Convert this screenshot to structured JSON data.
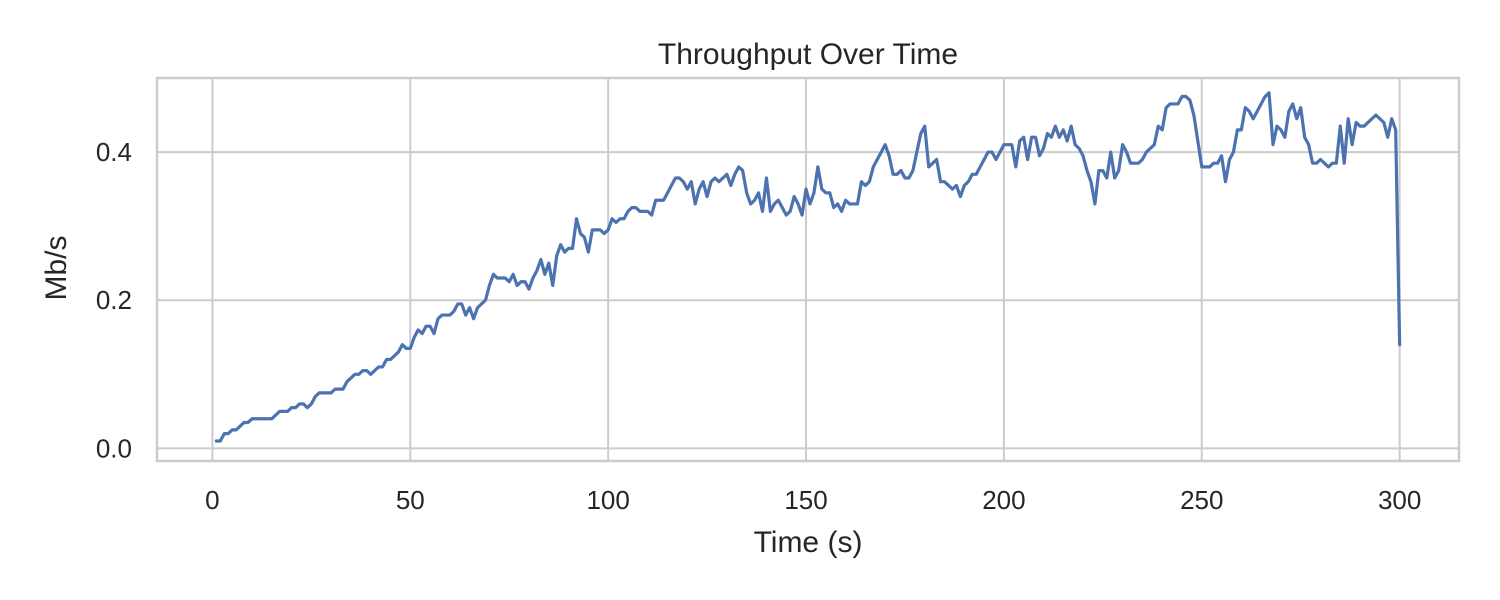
{
  "chart_data": {
    "type": "line",
    "title": "Throughput Over Time",
    "xlabel": "Time (s)",
    "ylabel": "Mb/s",
    "xlim": [
      -14,
      315
    ],
    "ylim": [
      -0.017,
      0.5
    ],
    "xticks": [
      0,
      50,
      100,
      150,
      200,
      250,
      300
    ],
    "xtick_labels": [
      "0",
      "50",
      "100",
      "150",
      "200",
      "250",
      "300"
    ],
    "yticks": [
      0.0,
      0.2,
      0.4
    ],
    "ytick_labels": [
      "0.0",
      "0.2",
      "0.4"
    ],
    "grid": true,
    "legend": "none",
    "line_color": "#4c72b0",
    "series": [
      {
        "points": [
          [
            1,
            0.01
          ],
          [
            2,
            0.01
          ],
          [
            3,
            0.02
          ],
          [
            4,
            0.02
          ],
          [
            5,
            0.025
          ],
          [
            6,
            0.025
          ],
          [
            7,
            0.03
          ],
          [
            8,
            0.035
          ],
          [
            9,
            0.035
          ],
          [
            10,
            0.04
          ],
          [
            11,
            0.04
          ],
          [
            12,
            0.04
          ],
          [
            13,
            0.04
          ],
          [
            14,
            0.04
          ],
          [
            15,
            0.04
          ],
          [
            16,
            0.045
          ],
          [
            17,
            0.05
          ],
          [
            18,
            0.05
          ],
          [
            19,
            0.05
          ],
          [
            20,
            0.055
          ],
          [
            21,
            0.055
          ],
          [
            22,
            0.06
          ],
          [
            23,
            0.06
          ],
          [
            24,
            0.055
          ],
          [
            25,
            0.06
          ],
          [
            26,
            0.07
          ],
          [
            27,
            0.075
          ],
          [
            28,
            0.075
          ],
          [
            29,
            0.075
          ],
          [
            30,
            0.075
          ],
          [
            31,
            0.08
          ],
          [
            32,
            0.08
          ],
          [
            33,
            0.08
          ],
          [
            34,
            0.09
          ],
          [
            35,
            0.095
          ],
          [
            36,
            0.1
          ],
          [
            37,
            0.1
          ],
          [
            38,
            0.105
          ],
          [
            39,
            0.105
          ],
          [
            40,
            0.1
          ],
          [
            41,
            0.105
          ],
          [
            42,
            0.11
          ],
          [
            43,
            0.11
          ],
          [
            44,
            0.12
          ],
          [
            45,
            0.12
          ],
          [
            46,
            0.125
          ],
          [
            47,
            0.13
          ],
          [
            48,
            0.14
          ],
          [
            49,
            0.135
          ],
          [
            50,
            0.135
          ],
          [
            51,
            0.15
          ],
          [
            52,
            0.16
          ],
          [
            53,
            0.155
          ],
          [
            54,
            0.165
          ],
          [
            55,
            0.165
          ],
          [
            56,
            0.155
          ],
          [
            57,
            0.175
          ],
          [
            58,
            0.18
          ],
          [
            59,
            0.18
          ],
          [
            60,
            0.18
          ],
          [
            61,
            0.185
          ],
          [
            62,
            0.195
          ],
          [
            63,
            0.195
          ],
          [
            64,
            0.18
          ],
          [
            65,
            0.19
          ],
          [
            66,
            0.175
          ],
          [
            67,
            0.19
          ],
          [
            68,
            0.195
          ],
          [
            69,
            0.2
          ],
          [
            70,
            0.22
          ],
          [
            71,
            0.235
          ],
          [
            72,
            0.23
          ],
          [
            73,
            0.23
          ],
          [
            74,
            0.23
          ],
          [
            75,
            0.225
          ],
          [
            76,
            0.235
          ],
          [
            77,
            0.22
          ],
          [
            78,
            0.225
          ],
          [
            79,
            0.225
          ],
          [
            80,
            0.215
          ],
          [
            81,
            0.23
          ],
          [
            82,
            0.24
          ],
          [
            83,
            0.255
          ],
          [
            84,
            0.235
          ],
          [
            85,
            0.25
          ],
          [
            86,
            0.22
          ],
          [
            87,
            0.26
          ],
          [
            88,
            0.275
          ],
          [
            89,
            0.265
          ],
          [
            90,
            0.27
          ],
          [
            91,
            0.27
          ],
          [
            92,
            0.31
          ],
          [
            93,
            0.29
          ],
          [
            94,
            0.285
          ],
          [
            95,
            0.265
          ],
          [
            96,
            0.295
          ],
          [
            97,
            0.295
          ],
          [
            98,
            0.295
          ],
          [
            99,
            0.29
          ],
          [
            100,
            0.295
          ],
          [
            101,
            0.31
          ],
          [
            102,
            0.305
          ],
          [
            103,
            0.31
          ],
          [
            104,
            0.31
          ],
          [
            105,
            0.32
          ],
          [
            106,
            0.325
          ],
          [
            107,
            0.325
          ],
          [
            108,
            0.32
          ],
          [
            109,
            0.32
          ],
          [
            110,
            0.32
          ],
          [
            111,
            0.315
          ],
          [
            112,
            0.335
          ],
          [
            113,
            0.335
          ],
          [
            114,
            0.335
          ],
          [
            115,
            0.345
          ],
          [
            116,
            0.355
          ],
          [
            117,
            0.365
          ],
          [
            118,
            0.365
          ],
          [
            119,
            0.36
          ],
          [
            120,
            0.35
          ],
          [
            121,
            0.36
          ],
          [
            122,
            0.33
          ],
          [
            123,
            0.35
          ],
          [
            124,
            0.36
          ],
          [
            125,
            0.34
          ],
          [
            126,
            0.36
          ],
          [
            127,
            0.365
          ],
          [
            128,
            0.36
          ],
          [
            129,
            0.365
          ],
          [
            130,
            0.37
          ],
          [
            131,
            0.355
          ],
          [
            132,
            0.37
          ],
          [
            133,
            0.38
          ],
          [
            134,
            0.375
          ],
          [
            135,
            0.345
          ],
          [
            136,
            0.33
          ],
          [
            137,
            0.335
          ],
          [
            138,
            0.345
          ],
          [
            139,
            0.32
          ],
          [
            140,
            0.365
          ],
          [
            141,
            0.32
          ],
          [
            142,
            0.33
          ],
          [
            143,
            0.335
          ],
          [
            144,
            0.325
          ],
          [
            145,
            0.315
          ],
          [
            146,
            0.32
          ],
          [
            147,
            0.34
          ],
          [
            148,
            0.33
          ],
          [
            149,
            0.315
          ],
          [
            150,
            0.35
          ],
          [
            151,
            0.33
          ],
          [
            152,
            0.345
          ],
          [
            153,
            0.38
          ],
          [
            154,
            0.35
          ],
          [
            155,
            0.345
          ],
          [
            156,
            0.345
          ],
          [
            157,
            0.325
          ],
          [
            158,
            0.33
          ],
          [
            159,
            0.32
          ],
          [
            160,
            0.335
          ],
          [
            161,
            0.33
          ],
          [
            162,
            0.33
          ],
          [
            163,
            0.33
          ],
          [
            164,
            0.36
          ],
          [
            165,
            0.355
          ],
          [
            166,
            0.36
          ],
          [
            167,
            0.38
          ],
          [
            168,
            0.39
          ],
          [
            169,
            0.4
          ],
          [
            170,
            0.41
          ],
          [
            171,
            0.395
          ],
          [
            172,
            0.37
          ],
          [
            173,
            0.37
          ],
          [
            174,
            0.375
          ],
          [
            175,
            0.365
          ],
          [
            176,
            0.365
          ],
          [
            177,
            0.375
          ],
          [
            178,
            0.4
          ],
          [
            179,
            0.425
          ],
          [
            180,
            0.435
          ],
          [
            181,
            0.38
          ],
          [
            182,
            0.385
          ],
          [
            183,
            0.39
          ],
          [
            184,
            0.36
          ],
          [
            185,
            0.36
          ],
          [
            186,
            0.355
          ],
          [
            187,
            0.35
          ],
          [
            188,
            0.355
          ],
          [
            189,
            0.34
          ],
          [
            190,
            0.355
          ],
          [
            191,
            0.36
          ],
          [
            192,
            0.37
          ],
          [
            193,
            0.37
          ],
          [
            194,
            0.38
          ],
          [
            195,
            0.39
          ],
          [
            196,
            0.4
          ],
          [
            197,
            0.4
          ],
          [
            198,
            0.39
          ],
          [
            199,
            0.4
          ],
          [
            200,
            0.41
          ],
          [
            201,
            0.41
          ],
          [
            202,
            0.41
          ],
          [
            203,
            0.38
          ],
          [
            204,
            0.415
          ],
          [
            205,
            0.42
          ],
          [
            206,
            0.39
          ],
          [
            207,
            0.42
          ],
          [
            208,
            0.42
          ],
          [
            209,
            0.395
          ],
          [
            210,
            0.405
          ],
          [
            211,
            0.425
          ],
          [
            212,
            0.42
          ],
          [
            213,
            0.435
          ],
          [
            214,
            0.42
          ],
          [
            215,
            0.43
          ],
          [
            216,
            0.415
          ],
          [
            217,
            0.435
          ],
          [
            218,
            0.41
          ],
          [
            219,
            0.405
          ],
          [
            220,
            0.395
          ],
          [
            221,
            0.375
          ],
          [
            222,
            0.36
          ],
          [
            223,
            0.33
          ],
          [
            224,
            0.375
          ],
          [
            225,
            0.375
          ],
          [
            226,
            0.365
          ],
          [
            227,
            0.4
          ],
          [
            228,
            0.365
          ],
          [
            229,
            0.375
          ],
          [
            230,
            0.41
          ],
          [
            231,
            0.4
          ],
          [
            232,
            0.385
          ],
          [
            233,
            0.385
          ],
          [
            234,
            0.385
          ],
          [
            235,
            0.39
          ],
          [
            236,
            0.4
          ],
          [
            237,
            0.405
          ],
          [
            238,
            0.41
          ],
          [
            239,
            0.435
          ],
          [
            240,
            0.43
          ],
          [
            241,
            0.46
          ],
          [
            242,
            0.465
          ],
          [
            243,
            0.465
          ],
          [
            244,
            0.465
          ],
          [
            245,
            0.475
          ],
          [
            246,
            0.475
          ],
          [
            247,
            0.47
          ],
          [
            248,
            0.45
          ],
          [
            249,
            0.415
          ],
          [
            250,
            0.38
          ],
          [
            251,
            0.38
          ],
          [
            252,
            0.38
          ],
          [
            253,
            0.385
          ],
          [
            254,
            0.385
          ],
          [
            255,
            0.395
          ],
          [
            256,
            0.36
          ],
          [
            257,
            0.39
          ],
          [
            258,
            0.4
          ],
          [
            259,
            0.43
          ],
          [
            260,
            0.43
          ],
          [
            261,
            0.46
          ],
          [
            262,
            0.455
          ],
          [
            263,
            0.445
          ],
          [
            264,
            0.455
          ],
          [
            265,
            0.465
          ],
          [
            266,
            0.475
          ],
          [
            267,
            0.48
          ],
          [
            268,
            0.41
          ],
          [
            269,
            0.435
          ],
          [
            270,
            0.43
          ],
          [
            271,
            0.42
          ],
          [
            272,
            0.455
          ],
          [
            273,
            0.465
          ],
          [
            274,
            0.445
          ],
          [
            275,
            0.46
          ],
          [
            276,
            0.42
          ],
          [
            277,
            0.41
          ],
          [
            278,
            0.385
          ],
          [
            279,
            0.385
          ],
          [
            280,
            0.39
          ],
          [
            281,
            0.385
          ],
          [
            282,
            0.38
          ],
          [
            283,
            0.385
          ],
          [
            284,
            0.385
          ],
          [
            285,
            0.435
          ],
          [
            286,
            0.385
          ],
          [
            287,
            0.445
          ],
          [
            288,
            0.41
          ],
          [
            289,
            0.44
          ],
          [
            290,
            0.435
          ],
          [
            291,
            0.435
          ],
          [
            292,
            0.44
          ],
          [
            293,
            0.445
          ],
          [
            294,
            0.45
          ],
          [
            295,
            0.445
          ],
          [
            296,
            0.44
          ],
          [
            297,
            0.42
          ],
          [
            298,
            0.445
          ],
          [
            299,
            0.43
          ],
          [
            300,
            0.14
          ]
        ]
      }
    ]
  }
}
